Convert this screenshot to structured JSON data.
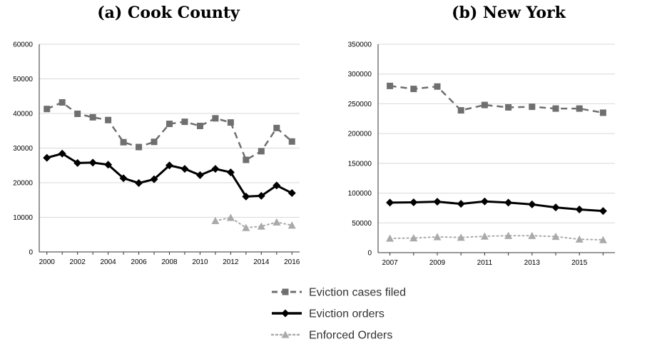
{
  "chart_data": [
    {
      "type": "line",
      "title": "(a) Cook County",
      "x": [
        2000,
        2001,
        2002,
        2003,
        2004,
        2005,
        2006,
        2007,
        2008,
        2009,
        2010,
        2011,
        2012,
        2013,
        2014,
        2015,
        2016
      ],
      "xticks": [
        "2000",
        "2002",
        "2004",
        "2006",
        "2008",
        "2010",
        "2012",
        "2014",
        "2016"
      ],
      "xtick_values": [
        2000,
        2002,
        2004,
        2006,
        2008,
        2010,
        2012,
        2014,
        2016
      ],
      "ylim": [
        0,
        60000
      ],
      "yticks": [
        "0",
        "10000",
        "20000",
        "30000",
        "40000",
        "50000",
        "60000"
      ],
      "ytick_values": [
        0,
        10000,
        20000,
        30000,
        40000,
        50000,
        60000
      ],
      "grid": true,
      "series": [
        {
          "name": "Eviction cases filed",
          "values": [
            41300,
            43200,
            39900,
            38900,
            38100,
            31700,
            30300,
            31800,
            37000,
            37600,
            36400,
            38600,
            37400,
            26600,
            29100,
            35800,
            31900
          ]
        },
        {
          "name": "Eviction orders",
          "values": [
            27200,
            28400,
            25700,
            25800,
            25200,
            21300,
            19900,
            21000,
            25000,
            24000,
            22200,
            24000,
            23000,
            16000,
            16200,
            19200,
            17000
          ]
        },
        {
          "name": "Enforced Orders",
          "values": [
            null,
            null,
            null,
            null,
            null,
            null,
            null,
            null,
            null,
            null,
            null,
            9000,
            9900,
            7000,
            7400,
            8600,
            7700
          ]
        }
      ]
    },
    {
      "type": "line",
      "title": "(b) New York",
      "x": [
        2007,
        2008,
        2009,
        2010,
        2011,
        2012,
        2013,
        2014,
        2015,
        2016
      ],
      "xticks": [
        "2007",
        "2009",
        "2011",
        "2013",
        "2015"
      ],
      "xtick_values": [
        2007,
        2009,
        2011,
        2013,
        2015
      ],
      "ylim": [
        0,
        350000
      ],
      "yticks": [
        "0",
        "50000",
        "100000",
        "150000",
        "200000",
        "250000",
        "300000",
        "350000"
      ],
      "ytick_values": [
        0,
        50000,
        100000,
        150000,
        200000,
        250000,
        300000,
        350000
      ],
      "grid": true,
      "series": [
        {
          "name": "Eviction cases filed",
          "values": [
            280000,
            275000,
            279000,
            239000,
            248000,
            244000,
            245000,
            242000,
            242000,
            235000
          ]
        },
        {
          "name": "Eviction orders",
          "values": [
            84000,
            84500,
            85500,
            82000,
            86000,
            84000,
            81000,
            76000,
            72500,
            70000
          ]
        },
        {
          "name": "Enforced Orders",
          "values": [
            24000,
            24500,
            26500,
            25500,
            27500,
            28500,
            28500,
            27000,
            22500,
            21500
          ]
        }
      ]
    }
  ],
  "legend": [
    {
      "label": "Eviction cases filed",
      "color": "#6f6f6f",
      "marker": "square",
      "style": "dashed"
    },
    {
      "label": "Eviction orders",
      "color": "#000000",
      "marker": "diamond",
      "style": "solid"
    },
    {
      "label": "Enforced Orders",
      "color": "#aaaaaa",
      "marker": "triangle",
      "style": "dotted"
    }
  ]
}
